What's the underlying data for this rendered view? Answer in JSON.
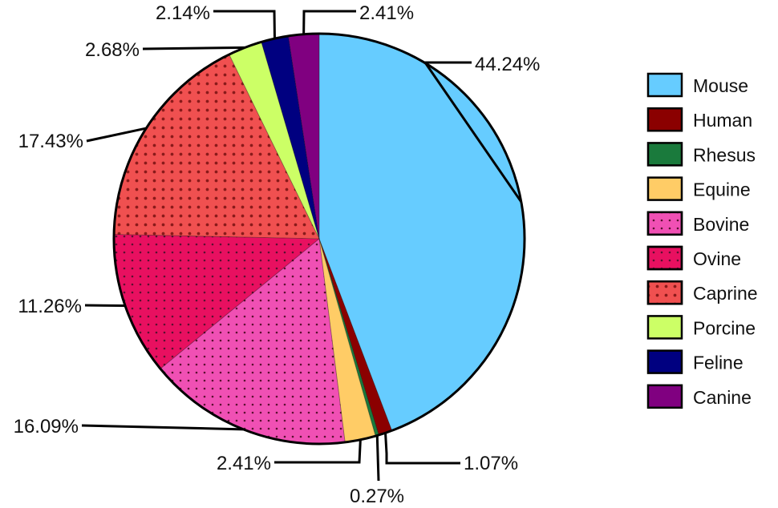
{
  "chart_data": {
    "type": "pie",
    "legend_position": "right",
    "slices": [
      {
        "label": "Mouse",
        "value": 44.24,
        "value_label": "44.24%",
        "color": "#66CCFF",
        "pattern": "none"
      },
      {
        "label": "Human",
        "value": 1.07,
        "value_label": "1.07%",
        "color": "#8B0000",
        "pattern": "none"
      },
      {
        "label": "Rhesus",
        "value": 0.27,
        "value_label": "0.27%",
        "color": "#1A7A3C",
        "pattern": "none"
      },
      {
        "label": "Equine",
        "value": 2.41,
        "value_label": "2.41%",
        "color": "#FFCC66",
        "pattern": "none"
      },
      {
        "label": "Bovine",
        "value": 16.09,
        "value_label": "16.09%",
        "color": "#F050B4",
        "pattern": "dots-small"
      },
      {
        "label": "Ovine",
        "value": 11.26,
        "value_label": "11.26%",
        "color": "#E81060",
        "pattern": "dots-small"
      },
      {
        "label": "Caprine",
        "value": 17.43,
        "value_label": "17.43%",
        "color": "#F05050",
        "pattern": "dots-large"
      },
      {
        "label": "Porcine",
        "value": 2.68,
        "value_label": "2.68%",
        "color": "#CCFF66",
        "pattern": "none"
      },
      {
        "label": "Feline",
        "value": 2.14,
        "value_label": "2.14%",
        "color": "#000080",
        "pattern": "none"
      },
      {
        "label": "Canine",
        "value": 2.41,
        "value_label": "2.41%",
        "color": "#800080",
        "pattern": "none"
      }
    ]
  }
}
